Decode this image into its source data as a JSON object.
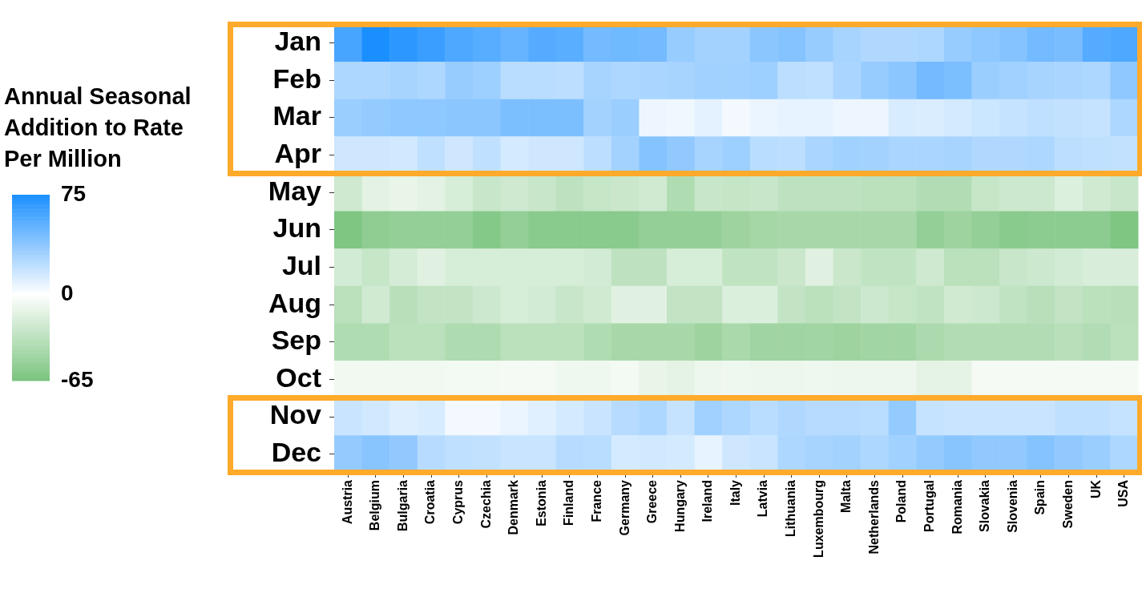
{
  "chart_data": {
    "type": "heatmap",
    "clabel": "Annual Seasonal Addition to Rate Per Million",
    "categories": [
      "Austria",
      "Belgium",
      "Bulgaria",
      "Croatia",
      "Cyprus",
      "Czechia",
      "Denmark",
      "Estonia",
      "Finland",
      "France",
      "Germany",
      "Greece",
      "Hungary",
      "Ireland",
      "Italy",
      "Latvia",
      "Lithuania",
      "Luxembourg",
      "Malta",
      "Netherlands",
      "Poland",
      "Portugal",
      "Romania",
      "Slovakia",
      "Slovenia",
      "Spain",
      "Sweden",
      "UK",
      "USA"
    ],
    "y_categories": [
      "Jan",
      "Feb",
      "Mar",
      "Apr",
      "May",
      "Jun",
      "Jul",
      "Aug",
      "Sep",
      "Oct",
      "Nov",
      "Dec"
    ],
    "cells": [
      [
        60,
        75,
        69,
        65,
        58,
        55,
        50,
        56,
        54,
        46,
        47,
        46,
        34,
        30,
        30,
        38,
        40,
        34,
        29,
        26,
        26,
        27,
        34,
        37,
        40,
        46,
        44,
        56,
        58
      ],
      [
        27,
        27,
        29,
        27,
        34,
        32,
        23,
        23,
        22,
        29,
        27,
        28,
        29,
        31,
        31,
        32,
        22,
        21,
        28,
        34,
        38,
        46,
        43,
        33,
        31,
        29,
        28,
        27,
        37
      ],
      [
        33,
        35,
        37,
        37,
        38,
        38,
        43,
        43,
        43,
        30,
        33,
        6,
        5,
        9,
        4,
        7,
        8,
        8,
        6,
        6,
        13,
        12,
        14,
        17,
        19,
        21,
        20,
        19,
        27
      ],
      [
        16,
        16,
        15,
        21,
        16,
        21,
        14,
        16,
        16,
        22,
        30,
        40,
        36,
        29,
        32,
        23,
        22,
        28,
        31,
        30,
        28,
        28,
        29,
        26,
        26,
        27,
        22,
        21,
        20
      ],
      [
        -24,
        -14,
        -11,
        -14,
        -20,
        -27,
        -24,
        -27,
        -32,
        -28,
        -26,
        -23,
        -39,
        -27,
        -29,
        -27,
        -32,
        -32,
        -32,
        -34,
        -34,
        -38,
        -38,
        -28,
        -25,
        -25,
        -17,
        -23,
        -27
      ],
      [
        -63,
        -55,
        -53,
        -53,
        -53,
        -60,
        -53,
        -58,
        -58,
        -58,
        -58,
        -53,
        -53,
        -53,
        -48,
        -45,
        -43,
        -43,
        -43,
        -43,
        -43,
        -53,
        -48,
        -53,
        -58,
        -56,
        -56,
        -56,
        -63
      ],
      [
        -22,
        -28,
        -21,
        -15,
        -20,
        -20,
        -20,
        -20,
        -20,
        -22,
        -32,
        -32,
        -20,
        -20,
        -31,
        -31,
        -26,
        -15,
        -26,
        -31,
        -31,
        -24,
        -34,
        -34,
        -27,
        -25,
        -22,
        -19,
        -19
      ],
      [
        -34,
        -23,
        -35,
        -30,
        -30,
        -25,
        -20,
        -22,
        -27,
        -23,
        -15,
        -15,
        -30,
        -30,
        -18,
        -18,
        -30,
        -34,
        -30,
        -25,
        -28,
        -31,
        -23,
        -25,
        -31,
        -35,
        -30,
        -34,
        -35
      ],
      [
        -39,
        -39,
        -34,
        -34,
        -40,
        -40,
        -34,
        -34,
        -34,
        -39,
        -43,
        -43,
        -43,
        -48,
        -42,
        -47,
        -47,
        -46,
        -48,
        -46,
        -46,
        -41,
        -38,
        -38,
        -38,
        -38,
        -35,
        -38,
        -34
      ],
      [
        -7,
        -7,
        -7,
        -7,
        -6,
        -6,
        -5,
        -5,
        -8,
        -8,
        -6,
        -11,
        -13,
        -9,
        -8,
        -9,
        -9,
        -8,
        -9,
        -9,
        -9,
        -13,
        -13,
        -5,
        -5,
        -5,
        -5,
        -5,
        -5
      ],
      [
        18,
        15,
        11,
        13,
        4,
        4,
        7,
        10,
        14,
        18,
        24,
        27,
        19,
        31,
        27,
        23,
        26,
        24,
        24,
        23,
        35,
        19,
        18,
        18,
        18,
        18,
        21,
        21,
        19
      ],
      [
        35,
        39,
        36,
        24,
        21,
        20,
        18,
        18,
        24,
        23,
        14,
        15,
        14,
        8,
        16,
        18,
        27,
        29,
        30,
        27,
        31,
        35,
        39,
        36,
        36,
        40,
        36,
        33,
        27
      ]
    ],
    "clim": [
      -65,
      75
    ],
    "cticks": [
      75,
      0,
      -65
    ]
  }
}
